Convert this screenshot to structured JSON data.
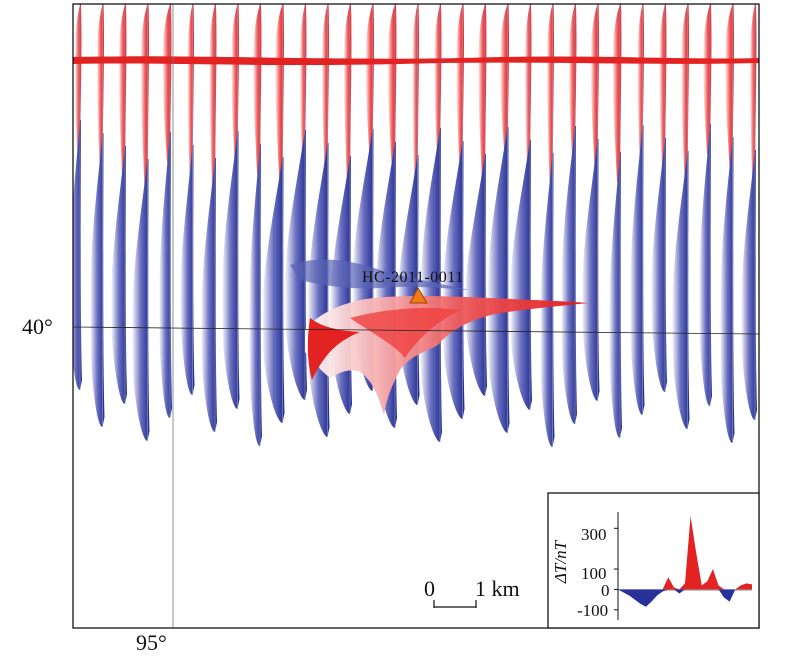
{
  "chart_data": {
    "type": "area",
    "description_axes": {
      "latitude_label": "40°",
      "longitude_label": "95°"
    },
    "station": {
      "name": "HC-2011-0011"
    },
    "scale_bar": {
      "zero": "0",
      "length_label": "1 km"
    },
    "colors": {
      "positive": "#e32222",
      "negative": "#28309a",
      "frame": "#000000"
    },
    "inset": {
      "ylabel": "ΔT/nT",
      "ticks": [
        "300",
        "100",
        "0",
        "-100"
      ],
      "tick_values": [
        300,
        100,
        0,
        -100
      ],
      "ylim": [
        -150,
        380
      ],
      "profile_values": [
        0,
        -15,
        -30,
        -50,
        -70,
        -85,
        -60,
        -30,
        -10,
        60,
        10,
        -20,
        30,
        360,
        180,
        20,
        40,
        100,
        20,
        -40,
        -60,
        0,
        20,
        30,
        25
      ]
    }
  }
}
